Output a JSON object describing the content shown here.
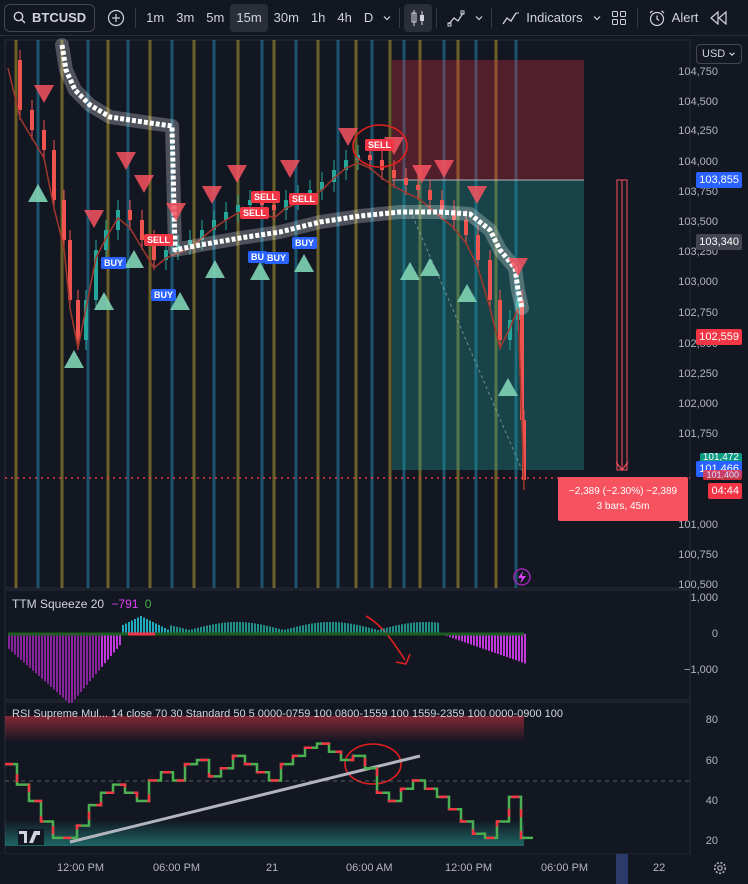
{
  "toolbar": {
    "symbol": "BTCUSD",
    "timeframes": [
      "1m",
      "3m",
      "5m",
      "15m",
      "30m",
      "1h",
      "4h",
      "D"
    ],
    "active_timeframe": "15m",
    "indicators_label": "Indicators",
    "alert_label": "Alert"
  },
  "main_pane": {
    "currency": "USD",
    "price_axis": [
      "104,750",
      "104,500",
      "104,250",
      "104,000",
      "103,750",
      "103,500",
      "103,250",
      "103,000",
      "102,750",
      "102,500",
      "102,250",
      "102,000",
      "101,750",
      "101,000",
      "100,750",
      "100,500"
    ],
    "price_labels": {
      "target": "103,855",
      "mid": "103,340",
      "stop": "102,559",
      "green": "101,472",
      "current": "101,466",
      "countdown": "04:44",
      "partial": "101,400"
    },
    "signal_tags": {
      "sell": "SELL",
      "buy": "BUY",
      "bu": "BU"
    },
    "measure": {
      "line1": "−2,389 (−2.30%) −2,389",
      "line2": "3 bars, 45m"
    },
    "colors": {
      "up": "#26a69a",
      "down": "#ef5350",
      "sell": "#f23645",
      "buy": "#2962ff",
      "accent": "#2962ff"
    }
  },
  "squeeze_pane": {
    "title": "TTM Squeeze 20",
    "value": "−791",
    "value2": "0",
    "axis": [
      "1,000",
      "0",
      "−1,000"
    ]
  },
  "rsi_pane": {
    "title": "RSI Supreme Mul... 14 close 70 30 Standard 50 5 0000-0759 100 0800-1559 100 1559-2359 100 0000-0900 100",
    "axis": [
      "80",
      "60",
      "40",
      "20"
    ]
  },
  "time_axis": [
    "12:00 PM",
    "06:00 PM",
    "21",
    "06:00 AM",
    "12:00 PM",
    "06:00 PM",
    "22"
  ]
}
